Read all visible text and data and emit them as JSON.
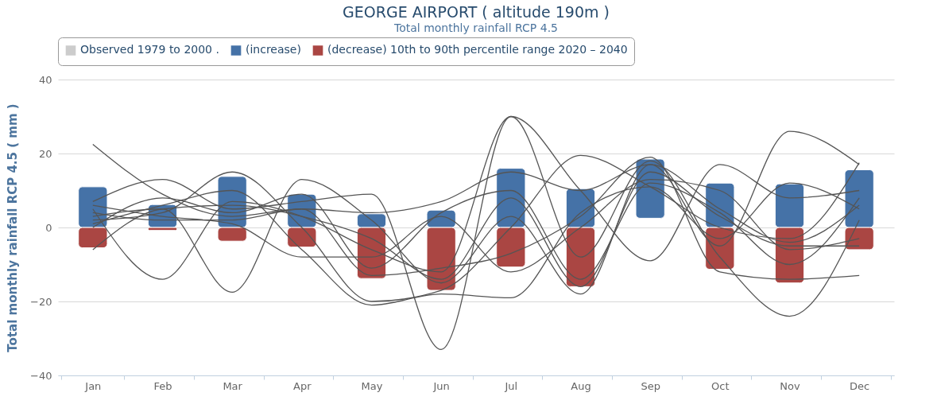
{
  "chart_data": {
    "type": "bar",
    "title": "GEORGE AIRPORT ( altitude 190m )",
    "subtitle": "Total monthly rainfall RCP 4.5",
    "ylabel": "Total monthly rainfall RCP 4.5 ( mm )",
    "categories": [
      "Jan",
      "Feb",
      "Mar",
      "Apr",
      "May",
      "Jun",
      "Jul",
      "Aug",
      "Sep",
      "Oct",
      "Nov",
      "Dec"
    ],
    "ylim": [
      -40,
      40
    ],
    "yticks": [
      -40,
      -20,
      0,
      20,
      40
    ],
    "grid": "y",
    "legend": "top",
    "series": [
      {
        "name": "Observed 1979 to 2000 .",
        "color": "#cccccc",
        "values": [
          null,
          null,
          null,
          null,
          null,
          null,
          null,
          null,
          null,
          null,
          null,
          null
        ]
      },
      {
        "name": "(increase)",
        "color": "#4572a7",
        "base": [
          0,
          0,
          0,
          0,
          0,
          0,
          0,
          0,
          2.5,
          0,
          0,
          0
        ],
        "values": [
          11,
          6.2,
          13.8,
          9,
          3.7,
          4.7,
          16,
          10.5,
          16,
          12,
          11.8,
          15.6
        ]
      },
      {
        "name": "(decrease) 10th to 90th percentile range 2020 – 2040",
        "color": "#aa4643",
        "values": [
          -5.5,
          -0.8,
          -3.7,
          -5.3,
          -13.8,
          -17,
          -10.7,
          -16,
          null,
          -11.3,
          -15,
          -6
        ]
      },
      {
        "type": "line",
        "color": "#555555",
        "values": [
          22.5,
          9,
          3,
          5,
          4,
          7,
          15,
          10,
          17,
          5,
          -4,
          6
        ]
      },
      {
        "type": "line",
        "color": "#555555",
        "values": [
          -6,
          5,
          6,
          3,
          -3,
          -14,
          8,
          -16,
          15,
          3,
          -5,
          -5
        ]
      },
      {
        "type": "line",
        "color": "#555555",
        "values": [
          5,
          -14,
          7,
          3,
          -6,
          -12,
          30,
          10,
          -9,
          17,
          8,
          10
        ]
      },
      {
        "type": "line",
        "color": "#555555",
        "values": [
          3,
          5,
          -17.5,
          13,
          2,
          -15,
          3,
          -18,
          17,
          -5,
          26,
          17
        ]
      },
      {
        "type": "line",
        "color": "#555555",
        "values": [
          7,
          13,
          5,
          7,
          9,
          -33,
          30,
          -8,
          18,
          -8,
          -24,
          2
        ]
      },
      {
        "type": "line",
        "color": "#555555",
        "values": [
          2,
          4,
          15,
          0,
          -20,
          -17,
          0,
          19.5,
          11,
          0,
          -3,
          17.5
        ]
      },
      {
        "type": "line",
        "color": "#555555",
        "values": [
          4,
          2,
          2,
          5,
          -13,
          -11,
          -7,
          3,
          19,
          -12,
          -14,
          -13
        ]
      },
      {
        "type": "line",
        "color": "#555555",
        "values": [
          1,
          6,
          10,
          -6,
          -21,
          -18,
          -19,
          4,
          11,
          -3,
          12,
          5
        ]
      },
      {
        "type": "line",
        "color": "#555555",
        "values": [
          6,
          3,
          1,
          -8,
          -8,
          3,
          -12,
          0,
          13,
          10,
          -6,
          -3
        ]
      },
      {
        "type": "line",
        "color": "#555555",
        "values": [
          0,
          8,
          4,
          9,
          -11,
          4,
          10,
          -14,
          12,
          4,
          -10,
          8
        ]
      }
    ]
  }
}
